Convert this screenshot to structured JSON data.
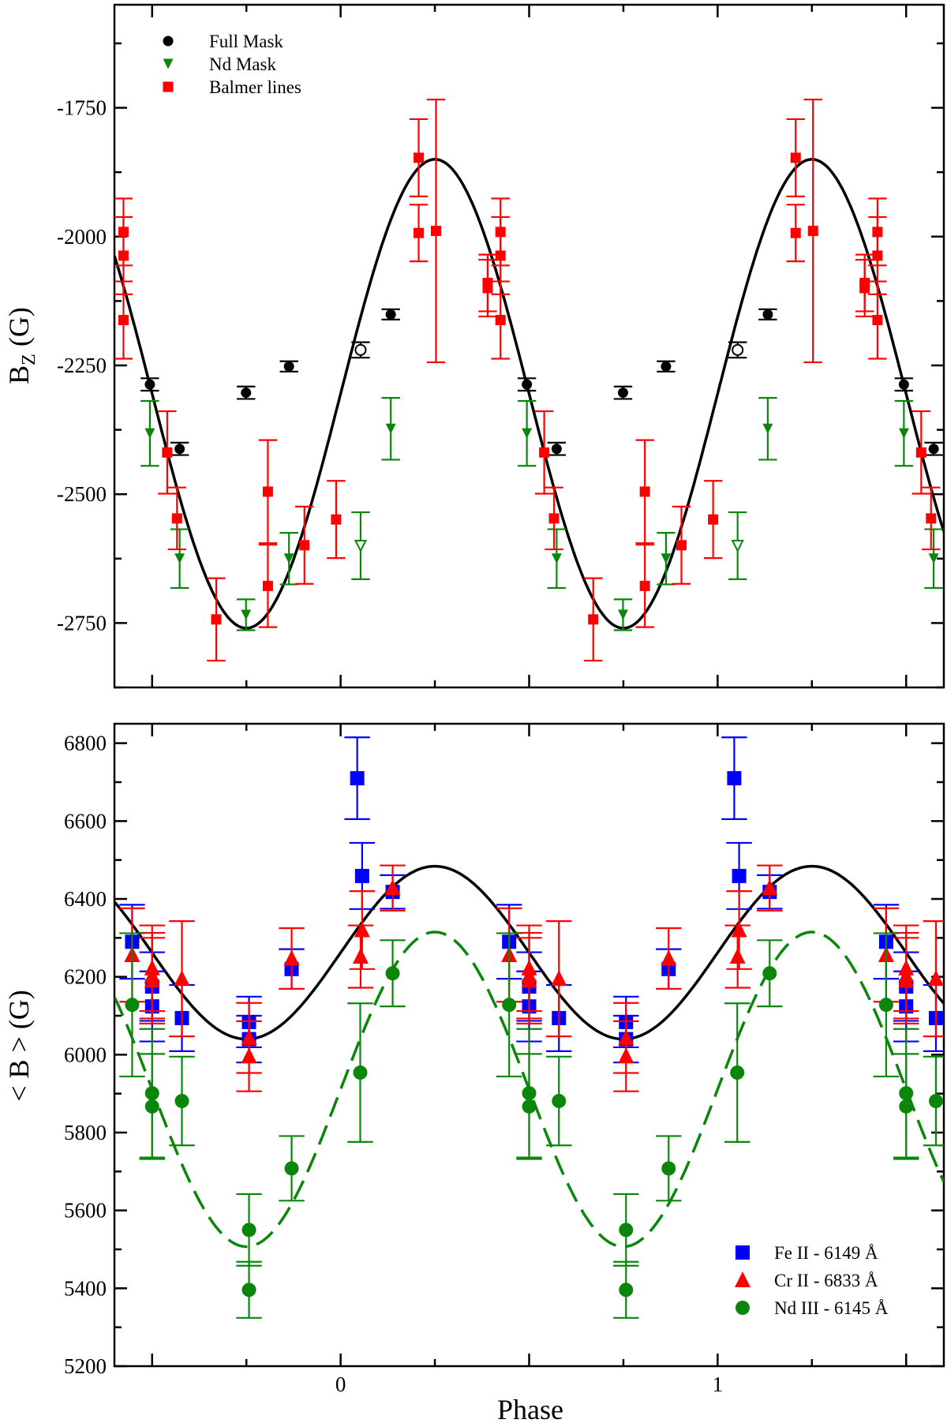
{
  "colors": {
    "black": "#000000",
    "green": "#0a870a",
    "red": "#ff0000",
    "blue": "#0000ff"
  },
  "chart_data": [
    {
      "type": "scatter",
      "panel": "top",
      "ylabel_main": "B",
      "ylabel_sub": "Z",
      "ylabel_unit": "(G)",
      "xlabel": "",
      "xlim": [
        -0.6,
        1.6
      ],
      "ylim": [
        -2875,
        -1550
      ],
      "yticks": [
        -1750,
        -2000,
        -2250,
        -2500,
        -2750
      ],
      "ytick_labels": [
        "-1750",
        "-2000",
        "-2250",
        "-2500",
        "-2750"
      ],
      "xticks": [
        0,
        1
      ],
      "xtick_labels": [
        "",
        ""
      ],
      "period": 1,
      "legend_position": "top-left",
      "series": [
        {
          "name": "Full Mask",
          "marker": "circle",
          "color": "#000000",
          "points": [
            [
              -0.506,
              -2287,
              12,
              false
            ],
            [
              -0.427,
              -2412,
              12,
              false
            ],
            [
              -0.251,
              -2303,
              12,
              false
            ],
            [
              -0.137,
              -2252,
              10,
              false
            ],
            [
              0.053,
              -2220,
              15,
              true
            ],
            [
              0.133,
              -2151,
              10,
              false
            ]
          ]
        },
        {
          "name": "Nd Mask",
          "marker": "triangle-down",
          "color": "#0a870a",
          "points": [
            [
              -0.506,
              -2382,
              63,
              false
            ],
            [
              -0.427,
              -2625,
              57,
              false
            ],
            [
              -0.251,
              -2734,
              30,
              false
            ],
            [
              -0.137,
              -2625,
              50,
              false
            ],
            [
              0.053,
              -2600,
              65,
              true
            ],
            [
              0.133,
              -2373,
              60,
              false
            ]
          ]
        },
        {
          "name": "Balmer lines",
          "marker": "square",
          "color": "#ff0000",
          "points": [
            [
              -0.576,
              -1991,
              65,
              false
            ],
            [
              -0.576,
              -2037,
              75,
              false
            ],
            [
              -0.576,
              -2162,
              75,
              false
            ],
            [
              -0.46,
              -2419,
              80,
              false
            ],
            [
              -0.434,
              -2547,
              60,
              false
            ],
            [
              -0.33,
              -2743,
              80,
              false
            ],
            [
              -0.193,
              -2495,
              100,
              false
            ],
            [
              -0.193,
              -2678,
              80,
              false
            ],
            [
              -0.096,
              -2599,
              75,
              false
            ],
            [
              -0.012,
              -2549,
              75,
              false
            ],
            [
              0.207,
              -1847,
              75,
              false
            ],
            [
              0.207,
              -1993,
              55,
              false
            ],
            [
              0.253,
              -1989,
              255,
              false
            ],
            [
              0.39,
              -2090,
              55,
              false
            ],
            [
              0.39,
              -2100,
              55,
              false
            ]
          ]
        }
      ],
      "fits": [
        {
          "name": "fit",
          "style": "solid",
          "color": "#000000",
          "mean": -2305,
          "amplitude": 455,
          "phase_max": 0.25
        }
      ]
    },
    {
      "type": "scatter",
      "panel": "bottom",
      "ylabel_main": "< B > (G)",
      "xlabel": "Phase",
      "xlim": [
        -0.6,
        1.6
      ],
      "ylim": [
        5200,
        6850
      ],
      "yticks": [
        5200,
        5400,
        5600,
        5800,
        6000,
        6200,
        6400,
        6600,
        6800
      ],
      "ytick_labels": [
        "5200",
        "5400",
        "5600",
        "5800",
        "6000",
        "6200",
        "6400",
        "6600",
        "6800"
      ],
      "xticks": [
        0,
        1
      ],
      "xtick_labels": [
        "0",
        "1"
      ],
      "period": 1,
      "legend_position": "bottom-right",
      "series": [
        {
          "name": "Fe II - 6149 Å",
          "marker": "square",
          "color": "#0000ff",
          "points": [
            [
              -0.553,
              6290,
              95,
              false
            ],
            [
              -0.5,
              6175,
              88,
              false
            ],
            [
              -0.5,
              6124,
              90,
              false
            ],
            [
              -0.421,
              6094,
              85,
              false
            ],
            [
              -0.243,
              6084,
              65,
              false
            ],
            [
              -0.243,
              6040,
              60,
              false
            ],
            [
              -0.13,
              6220,
              51,
              false
            ],
            [
              0.044,
              6710,
              105,
              false
            ],
            [
              0.057,
              6459,
              85,
              false
            ],
            [
              0.138,
              6418,
              43,
              false
            ]
          ]
        },
        {
          "name": "Cr II - 6833 Å",
          "marker": "triangle-up",
          "color": "#ff0000",
          "points": [
            [
              -0.553,
              6256,
              120,
              false
            ],
            [
              -0.5,
              6222,
              110,
              false
            ],
            [
              -0.5,
              6203,
              110,
              false
            ],
            [
              -0.5,
              6190,
              110,
              false
            ],
            [
              -0.421,
              6195,
              148,
              false
            ],
            [
              -0.243,
              6043,
              90,
              false
            ],
            [
              -0.243,
              5996,
              90,
              false
            ],
            [
              -0.13,
              6247,
              78,
              false
            ],
            [
              0.053,
              6252,
              80,
              false
            ],
            [
              0.057,
              6320,
              100,
              false
            ],
            [
              0.138,
              6428,
              58,
              false
            ]
          ]
        },
        {
          "name": "Nd III - 6145 Å",
          "marker": "circle",
          "color": "#0a870a",
          "points": [
            [
              -0.553,
              6128,
              184,
              false
            ],
            [
              -0.5,
              5901,
              165,
              false
            ],
            [
              -0.5,
              5867,
              135,
              false
            ],
            [
              -0.421,
              5881,
              114,
              false
            ],
            [
              -0.243,
              5550,
              92,
              false
            ],
            [
              -0.243,
              5396,
              72,
              false
            ],
            [
              -0.13,
              5708,
              83,
              false
            ],
            [
              0.052,
              5954,
              178,
              false
            ],
            [
              0.138,
              6209,
              85,
              false
            ]
          ]
        }
      ],
      "fits": [
        {
          "name": "fit-total",
          "style": "solid",
          "color": "#000000",
          "mean": 6262,
          "amplitude": 222,
          "phase_max": 0.25
        },
        {
          "name": "fit-nd",
          "style": "dashed",
          "color": "#0a870a",
          "mean": 5911,
          "amplitude": 404,
          "phase_max": 0.25
        }
      ]
    }
  ]
}
